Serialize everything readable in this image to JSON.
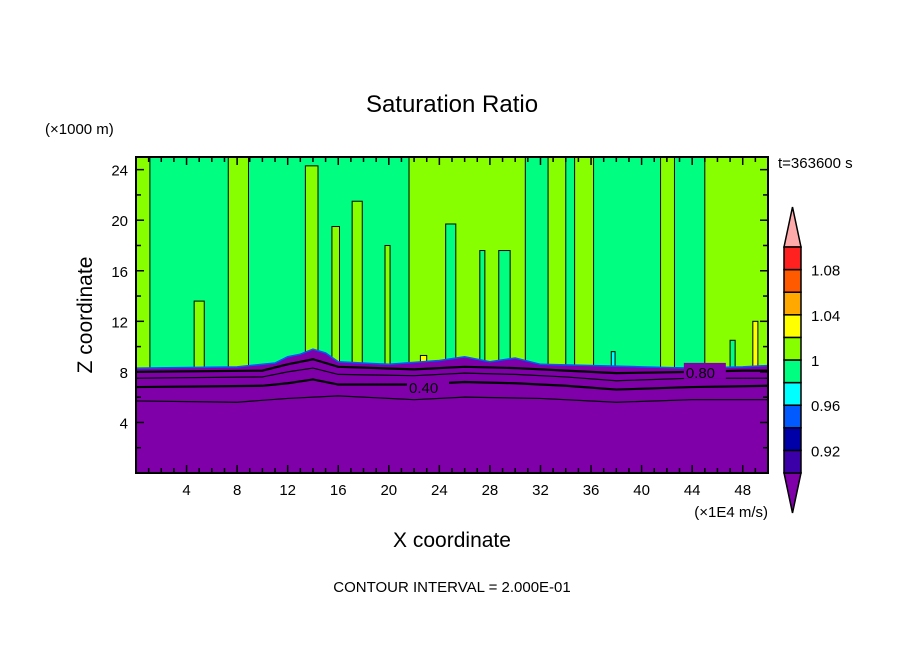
{
  "chart_data": {
    "type": "heatmap",
    "title": "Saturation Ratio",
    "xlabel": "X coordinate",
    "ylabel": "Z coordinate",
    "x_units": "(×1E4 m/s)",
    "y_units": "(×1000 m)",
    "time_label": "t=363600 s",
    "footer": "CONTOUR INTERVAL = 2.000E-01",
    "xlim": [
      0,
      50
    ],
    "ylim": [
      0,
      25
    ],
    "xticks": [
      4,
      8,
      12,
      16,
      20,
      24,
      28,
      32,
      36,
      40,
      44,
      48
    ],
    "yticks": [
      4,
      8,
      12,
      16,
      20,
      24
    ],
    "colorbar": {
      "levels": [
        0.9,
        0.92,
        0.94,
        0.96,
        0.98,
        1.0,
        1.02,
        1.04,
        1.06,
        1.08,
        1.1
      ],
      "colors": [
        "#3c00a8",
        "#0000a8",
        "#005aff",
        "#00ffff",
        "#00ff80",
        "#88ff00",
        "#ffff00",
        "#ffa800",
        "#ff5a00",
        "#ff2020"
      ],
      "under_color": "#7f00a8",
      "over_color": "#ffaaaa",
      "tick_labels": [
        {
          "value": 0.92,
          "label": "0.92"
        },
        {
          "value": 0.96,
          "label": "0.96"
        },
        {
          "value": 1.0,
          "label": "1"
        },
        {
          "value": 1.04,
          "label": "1.04"
        },
        {
          "value": 1.08,
          "label": "1.08"
        }
      ]
    },
    "background_value": 0.99,
    "regions": [
      {
        "x0": 0,
        "x1": 1.1,
        "ztop": 25,
        "value": 1.01
      },
      {
        "x0": 4.6,
        "x1": 5.4,
        "ztop": 13.6,
        "value": 1.01
      },
      {
        "x0": 7.3,
        "x1": 8.9,
        "ztop": 25,
        "value": 1.01
      },
      {
        "x0": 13.4,
        "x1": 14.4,
        "ztop": 24.3,
        "value": 1.01
      },
      {
        "x0": 15.5,
        "x1": 16.1,
        "ztop": 19.5,
        "value": 1.01
      },
      {
        "x0": 17.1,
        "x1": 17.9,
        "ztop": 21.5,
        "value": 1.01
      },
      {
        "x0": 19.7,
        "x1": 20.1,
        "ztop": 18.0,
        "value": 1.01
      },
      {
        "x0": 21.6,
        "x1": 30.8,
        "ztop": 25,
        "value": 1.01
      },
      {
        "x0": 24.5,
        "x1": 25.3,
        "ztop": 19.7,
        "value": 0.99
      },
      {
        "x0": 27.2,
        "x1": 27.6,
        "ztop": 17.6,
        "value": 0.99
      },
      {
        "x0": 28.7,
        "x1": 29.6,
        "ztop": 17.6,
        "value": 0.99
      },
      {
        "x0": 32.6,
        "x1": 34.0,
        "ztop": 25,
        "value": 1.01
      },
      {
        "x0": 34.7,
        "x1": 36.2,
        "ztop": 25,
        "value": 1.01
      },
      {
        "x0": 41.5,
        "x1": 42.6,
        "ztop": 25,
        "value": 1.01
      },
      {
        "x0": 45.0,
        "x1": 50,
        "ztop": 25,
        "value": 1.01
      },
      {
        "x0": 47.0,
        "x1": 47.4,
        "ztop": 10.5,
        "value": 0.99
      },
      {
        "x0": 48.8,
        "x1": 49.2,
        "ztop": 12.0,
        "value": 1.03
      },
      {
        "x0": 22.5,
        "x1": 23.0,
        "ztop": 9.3,
        "value": 1.03
      },
      {
        "x0": 37.6,
        "x1": 37.9,
        "ztop": 9.6,
        "value": 0.97
      }
    ],
    "surface_layer": {
      "value": 0.85,
      "top": [
        [
          0,
          8.3
        ],
        [
          8,
          8.4
        ],
        [
          11,
          8.7
        ],
        [
          12,
          9.2
        ],
        [
          13,
          9.4
        ],
        [
          14,
          9.8
        ],
        [
          15,
          9.5
        ],
        [
          16,
          8.8
        ],
        [
          20,
          8.6
        ],
        [
          24,
          8.9
        ],
        [
          26,
          9.2
        ],
        [
          28,
          8.8
        ],
        [
          30,
          9.1
        ],
        [
          32,
          8.6
        ],
        [
          36,
          8.5
        ],
        [
          40,
          8.4
        ],
        [
          44,
          8.3
        ],
        [
          48,
          8.4
        ],
        [
          50,
          8.5
        ]
      ]
    },
    "contours": [
      {
        "level": 0.8,
        "points": [
          [
            0,
            8.0
          ],
          [
            10,
            8.1
          ],
          [
            12,
            8.6
          ],
          [
            14,
            9.0
          ],
          [
            16,
            8.4
          ],
          [
            22,
            8.2
          ],
          [
            26,
            8.4
          ],
          [
            30,
            8.3
          ],
          [
            34,
            8.1
          ],
          [
            38,
            7.9
          ],
          [
            44,
            8.0
          ],
          [
            48,
            8.1
          ],
          [
            50,
            8.1
          ]
        ]
      },
      {
        "level": 0.6,
        "points": [
          [
            0,
            7.5
          ],
          [
            10,
            7.6
          ],
          [
            12,
            8.0
          ],
          [
            14,
            8.3
          ],
          [
            16,
            7.8
          ],
          [
            22,
            7.7
          ],
          [
            26,
            7.9
          ],
          [
            30,
            7.8
          ],
          [
            34,
            7.6
          ],
          [
            38,
            7.3
          ],
          [
            44,
            7.5
          ],
          [
            50,
            7.5
          ]
        ]
      },
      {
        "level": 0.4,
        "points": [
          [
            0,
            6.8
          ],
          [
            10,
            6.9
          ],
          [
            12,
            7.1
          ],
          [
            14,
            7.4
          ],
          [
            16,
            7.0
          ],
          [
            22,
            7.0
          ],
          [
            26,
            7.2
          ],
          [
            30,
            7.1
          ],
          [
            34,
            6.9
          ],
          [
            38,
            6.6
          ],
          [
            44,
            6.8
          ],
          [
            50,
            6.9
          ]
        ]
      },
      {
        "level": 0.2,
        "points": [
          [
            0,
            5.7
          ],
          [
            8,
            5.6
          ],
          [
            12,
            5.9
          ],
          [
            16,
            6.1
          ],
          [
            22,
            5.8
          ],
          [
            26,
            6.0
          ],
          [
            32,
            5.9
          ],
          [
            38,
            5.6
          ],
          [
            44,
            5.8
          ],
          [
            50,
            5.8
          ]
        ]
      }
    ],
    "contour_labels": [
      {
        "x": 21.6,
        "z": 6.8,
        "label": "0.40"
      },
      {
        "x": 43.5,
        "z": 8.0,
        "label": "0.80"
      }
    ]
  }
}
